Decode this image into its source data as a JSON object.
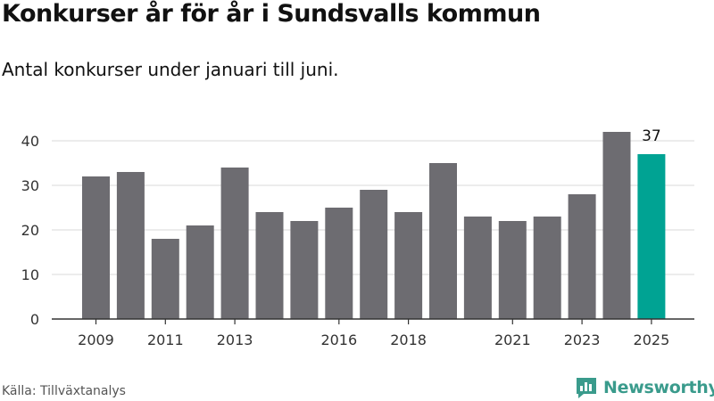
{
  "title": "Konkurser år för år i Sundsvalls kommun",
  "subtitle": "Antal konkurser under januari till juni.",
  "source": "Källa: Tillväxtanalys",
  "brand": {
    "name": "Newsworthy",
    "color": "#3a9b8c"
  },
  "colors": {
    "bar": "#6d6c71",
    "highlight": "#00a393",
    "grid": "#d9d9d9",
    "axis": "#333333"
  },
  "chart_data": {
    "type": "bar",
    "title": "",
    "xlabel": "",
    "ylabel": "",
    "x": [
      2009,
      2010,
      2011,
      2012,
      2013,
      2014,
      2015,
      2016,
      2017,
      2018,
      2019,
      2020,
      2021,
      2022,
      2023,
      2024,
      2025
    ],
    "values": [
      32,
      33,
      18,
      21,
      34,
      24,
      22,
      25,
      29,
      24,
      35,
      23,
      22,
      23,
      28,
      42,
      37
    ],
    "x_tick_labels": [
      "2009",
      "2011",
      "2013",
      "2016",
      "2018",
      "2021",
      "2023",
      "2025"
    ],
    "y_ticks": [
      0,
      10,
      20,
      30,
      40
    ],
    "ylim": [
      0,
      44
    ],
    "grid": true,
    "highlight_index": 16,
    "highlight_label": "37"
  }
}
